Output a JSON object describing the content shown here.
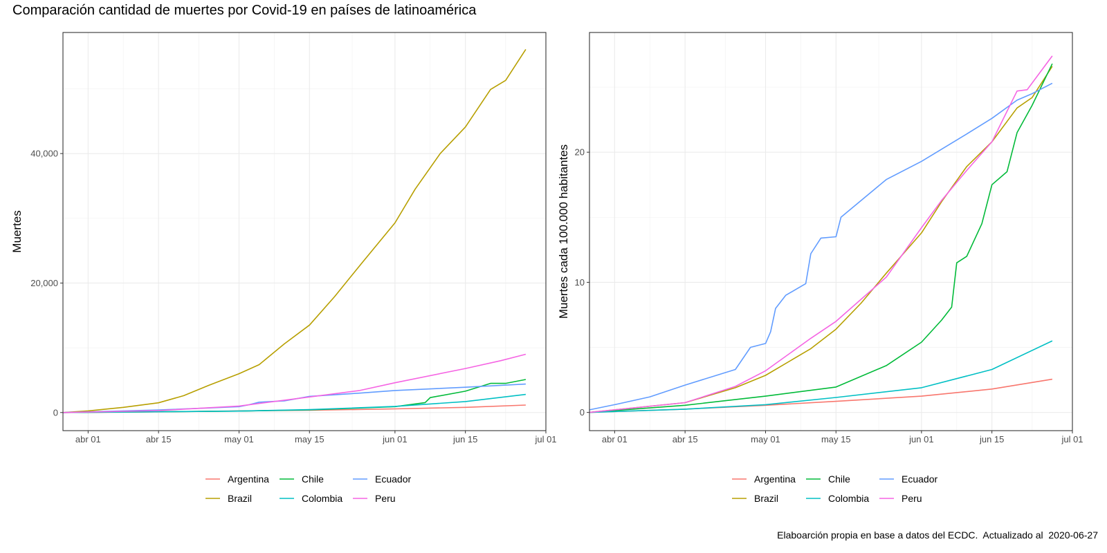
{
  "page": {
    "title": "Comparación cantidad de muertes por Covid-19 en países de latinoamérica",
    "caption": "Elaboarción propia en base a datos del ECDC.  Actualizado al  2020-06-27"
  },
  "colors": {
    "Argentina": "#F8766D",
    "Brazil": "#B79F00",
    "Chile": "#00BA38",
    "Colombia": "#00BFC4",
    "Ecuador": "#619CFF",
    "Peru": "#F564E3"
  },
  "chart_data": [
    {
      "type": "line",
      "ylabel": "Muertes",
      "xlabel": "",
      "x_ticks": [
        "abr 01",
        "abr 15",
        "may 01",
        "may 15",
        "jun 01",
        "jun 15",
        "jul 01"
      ],
      "x_tick_dates": [
        "2020-04-01",
        "2020-04-15",
        "2020-05-01",
        "2020-05-15",
        "2020-06-01",
        "2020-06-15",
        "2020-07-01"
      ],
      "xlim": [
        "2020-03-27",
        "2020-07-01"
      ],
      "y_ticks": [
        0,
        20000,
        40000
      ],
      "y_tick_labels": [
        "0",
        "20,000",
        "40,000"
      ],
      "ylim": [
        -2800,
        58700
      ],
      "grid": true,
      "legend": "bottom",
      "legend_order": [
        "Argentina",
        "Brazil",
        "Chile",
        "Colombia",
        "Ecuador",
        "Peru"
      ],
      "series": [
        {
          "name": "Argentina",
          "x": [
            "2020-03-27",
            "2020-04-15",
            "2020-05-01",
            "2020-05-15",
            "2020-06-01",
            "2020-06-15",
            "2020-06-27"
          ],
          "values": [
            0,
            100,
            250,
            350,
            560,
            800,
            1150
          ]
        },
        {
          "name": "Brazil",
          "x": [
            "2020-03-27",
            "2020-04-01",
            "2020-04-08",
            "2020-04-15",
            "2020-04-20",
            "2020-04-25",
            "2020-05-01",
            "2020-05-05",
            "2020-05-10",
            "2020-05-15",
            "2020-05-20",
            "2020-05-25",
            "2020-06-01",
            "2020-06-05",
            "2020-06-10",
            "2020-06-15",
            "2020-06-20",
            "2020-06-23",
            "2020-06-27"
          ],
          "values": [
            0,
            250,
            800,
            1500,
            2600,
            4200,
            6000,
            7400,
            10600,
            13500,
            17900,
            22700,
            29300,
            34500,
            40000,
            44100,
            49900,
            51300,
            56100
          ]
        },
        {
          "name": "Chile",
          "x": [
            "2020-03-27",
            "2020-05-01",
            "2020-05-15",
            "2020-06-01",
            "2020-06-07",
            "2020-06-08",
            "2020-06-15",
            "2020-06-20",
            "2020-06-23",
            "2020-06-27"
          ],
          "values": [
            0,
            220,
            400,
            900,
            1540,
            2300,
            3300,
            4500,
            4500,
            5100
          ]
        },
        {
          "name": "Colombia",
          "x": [
            "2020-03-27",
            "2020-05-01",
            "2020-05-15",
            "2020-06-01",
            "2020-06-15",
            "2020-06-27"
          ],
          "values": [
            0,
            220,
            450,
            950,
            1700,
            2800
          ]
        },
        {
          "name": "Ecuador",
          "x": [
            "2020-03-27",
            "2020-04-15",
            "2020-04-25",
            "2020-05-01",
            "2020-05-03",
            "2020-05-05",
            "2020-05-10",
            "2020-05-15",
            "2020-05-25",
            "2020-06-01",
            "2020-06-15",
            "2020-06-27"
          ],
          "values": [
            0,
            400,
            700,
            900,
            1200,
            1600,
            1800,
            2500,
            3000,
            3400,
            3900,
            4400
          ]
        },
        {
          "name": "Peru",
          "x": [
            "2020-03-27",
            "2020-04-15",
            "2020-05-01",
            "2020-05-15",
            "2020-05-25",
            "2020-06-01",
            "2020-06-15",
            "2020-06-22",
            "2020-06-27"
          ],
          "values": [
            0,
            300,
            1000,
            2400,
            3400,
            4600,
            6800,
            8000,
            9000
          ]
        }
      ]
    },
    {
      "type": "line",
      "ylabel": "Muertes cada 100.000 habitantes",
      "xlabel": "",
      "x_ticks": [
        "abr 01",
        "abr 15",
        "may 01",
        "may 15",
        "jun 01",
        "jun 15",
        "jul 01"
      ],
      "x_tick_dates": [
        "2020-04-01",
        "2020-04-15",
        "2020-05-01",
        "2020-05-15",
        "2020-06-01",
        "2020-06-15",
        "2020-07-01"
      ],
      "xlim": [
        "2020-03-27",
        "2020-07-01"
      ],
      "y_ticks": [
        0,
        10,
        20
      ],
      "y_tick_labels": [
        "0",
        "10",
        "20"
      ],
      "ylim": [
        -1.4,
        29.2
      ],
      "grid": true,
      "legend": "bottom",
      "legend_order": [
        "Argentina",
        "Brazil",
        "Chile",
        "Colombia",
        "Ecuador",
        "Peru"
      ],
      "series": [
        {
          "name": "Argentina",
          "x": [
            "2020-03-27",
            "2020-04-15",
            "2020-05-01",
            "2020-05-15",
            "2020-06-01",
            "2020-06-15",
            "2020-06-27"
          ],
          "values": [
            0,
            0.25,
            0.55,
            0.85,
            1.25,
            1.8,
            2.55
          ]
        },
        {
          "name": "Brazil",
          "x": [
            "2020-03-27",
            "2020-04-15",
            "2020-04-25",
            "2020-05-01",
            "2020-05-10",
            "2020-05-15",
            "2020-05-20",
            "2020-05-25",
            "2020-06-01",
            "2020-06-05",
            "2020-06-10",
            "2020-06-15",
            "2020-06-20",
            "2020-06-23",
            "2020-06-27"
          ],
          "values": [
            0,
            0.75,
            1.9,
            2.85,
            4.9,
            6.4,
            8.4,
            10.7,
            13.8,
            16.2,
            18.9,
            20.8,
            23.4,
            24.2,
            26.6
          ]
        },
        {
          "name": "Chile",
          "x": [
            "2020-03-27",
            "2020-04-15",
            "2020-05-01",
            "2020-05-15",
            "2020-05-25",
            "2020-06-01",
            "2020-06-05",
            "2020-06-07",
            "2020-06-08",
            "2020-06-10",
            "2020-06-13",
            "2020-06-15",
            "2020-06-18",
            "2020-06-20",
            "2020-06-23",
            "2020-06-27"
          ],
          "values": [
            0,
            0.55,
            1.25,
            1.95,
            3.6,
            5.4,
            7.1,
            8.1,
            11.5,
            12.0,
            14.5,
            17.5,
            18.5,
            21.5,
            23.6,
            26.8
          ]
        },
        {
          "name": "Colombia",
          "x": [
            "2020-03-27",
            "2020-04-15",
            "2020-05-01",
            "2020-05-15",
            "2020-06-01",
            "2020-06-15",
            "2020-06-27"
          ],
          "values": [
            0,
            0.25,
            0.6,
            1.15,
            1.9,
            3.3,
            5.5
          ]
        },
        {
          "name": "Ecuador",
          "x": [
            "2020-03-27",
            "2020-04-01",
            "2020-04-08",
            "2020-04-15",
            "2020-04-25",
            "2020-04-28",
            "2020-05-01",
            "2020-05-02",
            "2020-05-03",
            "2020-05-05",
            "2020-05-09",
            "2020-05-10",
            "2020-05-12",
            "2020-05-15",
            "2020-05-16",
            "2020-05-25",
            "2020-06-01",
            "2020-06-10",
            "2020-06-15",
            "2020-06-20",
            "2020-06-23",
            "2020-06-27"
          ],
          "values": [
            0.2,
            0.6,
            1.2,
            2.1,
            3.3,
            5.0,
            5.3,
            6.2,
            8.0,
            9.0,
            9.9,
            12.2,
            13.4,
            13.5,
            15.0,
            17.9,
            19.3,
            21.4,
            22.6,
            24.0,
            24.5,
            25.3
          ]
        },
        {
          "name": "Peru",
          "x": [
            "2020-03-27",
            "2020-04-15",
            "2020-04-25",
            "2020-05-01",
            "2020-05-10",
            "2020-05-15",
            "2020-05-25",
            "2020-06-01",
            "2020-06-05",
            "2020-06-10",
            "2020-06-15",
            "2020-06-20",
            "2020-06-22",
            "2020-06-27"
          ],
          "values": [
            0,
            0.75,
            2.0,
            3.2,
            5.7,
            7.0,
            10.4,
            14.2,
            16.3,
            18.6,
            20.8,
            24.7,
            24.8,
            27.4
          ]
        }
      ]
    }
  ]
}
